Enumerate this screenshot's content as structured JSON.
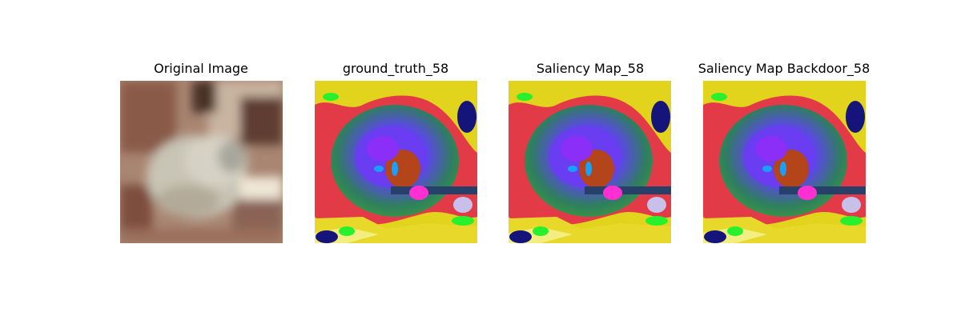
{
  "figure": {
    "panels": [
      {
        "title": "Original Image",
        "kind": "photo"
      },
      {
        "title": "ground_truth_58",
        "kind": "saliency-map"
      },
      {
        "title": "Saliency Map_58",
        "kind": "saliency-map"
      },
      {
        "title": "Saliency Map Backdoor_58",
        "kind": "saliency-map"
      }
    ]
  },
  "colors": {
    "background": "#ffffff",
    "saliency_palette": [
      "#e6d21e",
      "#e23a4a",
      "#2f8a55",
      "#7a3cf0",
      "#3c50e6",
      "#b43d14",
      "#18a0ff",
      "#ff2fd2",
      "#12127a",
      "#27f02c",
      "#c8c0e8"
    ],
    "photo_palette": [
      "#b48d78",
      "#7a4a38",
      "#c9c2b0",
      "#d9d2c2",
      "#5a3a2e"
    ]
  }
}
